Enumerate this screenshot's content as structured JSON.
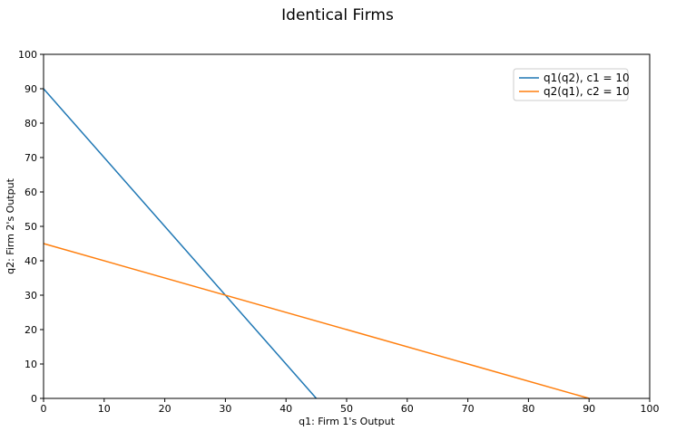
{
  "chart_data": {
    "type": "line",
    "title": "Identical Firms",
    "xlabel": "q1: Firm 1's Output",
    "ylabel": "q2: Firm 2's Output",
    "xlim": [
      0,
      100
    ],
    "ylim": [
      0,
      100
    ],
    "xticks": [
      "0",
      "10",
      "20",
      "30",
      "40",
      "50",
      "60",
      "70",
      "80",
      "90",
      "100"
    ],
    "yticks": [
      "0",
      "10",
      "20",
      "30",
      "40",
      "50",
      "60",
      "70",
      "80",
      "90",
      "100"
    ],
    "grid": false,
    "legend_position": "top-right",
    "series": [
      {
        "name": "q1(q2), c1 = 10",
        "color": "#1f77b4",
        "points": [
          [
            0,
            90
          ],
          [
            45,
            0
          ]
        ]
      },
      {
        "name": "q2(q1), c2 = 10",
        "color": "#ff7f0e",
        "points": [
          [
            0,
            45
          ],
          [
            90,
            0
          ]
        ]
      }
    ]
  }
}
